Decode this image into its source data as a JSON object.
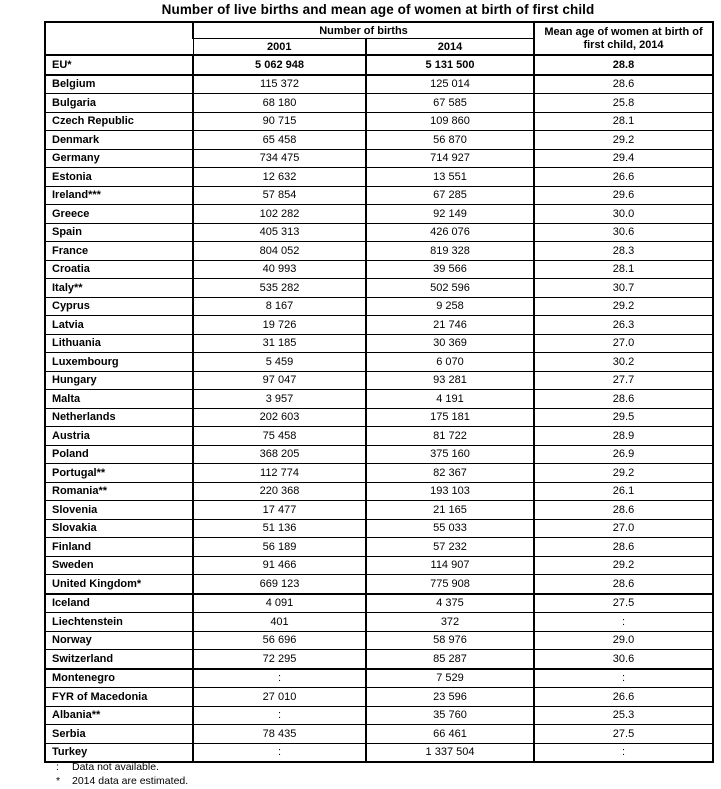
{
  "title": "Number of live births and mean age of women at birth of first child",
  "table": {
    "header": {
      "births_group": "Number of births",
      "col_2001": "2001",
      "col_2014": "2014",
      "mean_age": "Mean age of women at birth of first child, 2014"
    },
    "groups": [
      {
        "rows": [
          {
            "country": "EU*",
            "y2001": "5 062 948",
            "y2014": "5 131 500",
            "mean_age": "28.8",
            "bold": true
          }
        ]
      },
      {
        "rows": [
          {
            "country": "Belgium",
            "y2001": "115 372",
            "y2014": "125 014",
            "mean_age": "28.6"
          },
          {
            "country": "Bulgaria",
            "y2001": "68 180",
            "y2014": "67 585",
            "mean_age": "25.8"
          },
          {
            "country": "Czech Republic",
            "y2001": "90 715",
            "y2014": "109 860",
            "mean_age": "28.1"
          },
          {
            "country": "Denmark",
            "y2001": "65 458",
            "y2014": "56 870",
            "mean_age": "29.2"
          },
          {
            "country": "Germany",
            "y2001": "734 475",
            "y2014": "714 927",
            "mean_age": "29.4"
          },
          {
            "country": "Estonia",
            "y2001": "12 632",
            "y2014": "13 551",
            "mean_age": "26.6"
          },
          {
            "country": "Ireland***",
            "y2001": "57 854",
            "y2014": "67 285",
            "mean_age": "29.6"
          },
          {
            "country": "Greece",
            "y2001": "102 282",
            "y2014": "92 149",
            "mean_age": "30.0"
          },
          {
            "country": "Spain",
            "y2001": "405 313",
            "y2014": "426 076",
            "mean_age": "30.6"
          },
          {
            "country": "France",
            "y2001": "804 052",
            "y2014": "819 328",
            "mean_age": "28.3"
          },
          {
            "country": "Croatia",
            "y2001": "40 993",
            "y2014": "39 566",
            "mean_age": "28.1"
          },
          {
            "country": "Italy**",
            "y2001": "535 282",
            "y2014": "502 596",
            "mean_age": "30.7"
          },
          {
            "country": "Cyprus",
            "y2001": "8 167",
            "y2014": "9 258",
            "mean_age": "29.2"
          },
          {
            "country": "Latvia",
            "y2001": "19 726",
            "y2014": "21 746",
            "mean_age": "26.3"
          },
          {
            "country": "Lithuania",
            "y2001": "31 185",
            "y2014": "30 369",
            "mean_age": "27.0"
          },
          {
            "country": "Luxembourg",
            "y2001": "5 459",
            "y2014": "6 070",
            "mean_age": "30.2"
          },
          {
            "country": "Hungary",
            "y2001": "97 047",
            "y2014": "93 281",
            "mean_age": "27.7"
          },
          {
            "country": "Malta",
            "y2001": "3 957",
            "y2014": "4 191",
            "mean_age": "28.6"
          },
          {
            "country": "Netherlands",
            "y2001": "202 603",
            "y2014": "175 181",
            "mean_age": "29.5"
          },
          {
            "country": "Austria",
            "y2001": "75 458",
            "y2014": "81 722",
            "mean_age": "28.9"
          },
          {
            "country": "Poland",
            "y2001": "368 205",
            "y2014": "375 160",
            "mean_age": "26.9"
          },
          {
            "country": "Portugal**",
            "y2001": "112 774",
            "y2014": "82 367",
            "mean_age": "29.2"
          },
          {
            "country": "Romania**",
            "y2001": "220 368",
            "y2014": "193 103",
            "mean_age": "26.1"
          },
          {
            "country": "Slovenia",
            "y2001": "17 477",
            "y2014": "21 165",
            "mean_age": "28.6"
          },
          {
            "country": "Slovakia",
            "y2001": "51 136",
            "y2014": "55 033",
            "mean_age": "27.0"
          },
          {
            "country": "Finland",
            "y2001": "56 189",
            "y2014": "57 232",
            "mean_age": "28.6"
          },
          {
            "country": "Sweden",
            "y2001": "91 466",
            "y2014": "114 907",
            "mean_age": "29.2"
          },
          {
            "country": "United Kingdom*",
            "y2001": "669 123",
            "y2014": "775 908",
            "mean_age": "28.6"
          }
        ]
      },
      {
        "rows": [
          {
            "country": "Iceland",
            "y2001": "4 091",
            "y2014": "4 375",
            "mean_age": "27.5"
          },
          {
            "country": "Liechtenstein",
            "y2001": "401",
            "y2014": "372",
            "mean_age": ":"
          },
          {
            "country": "Norway",
            "y2001": "56 696",
            "y2014": "58 976",
            "mean_age": "29.0"
          },
          {
            "country": "Switzerland",
            "y2001": "72 295",
            "y2014": "85 287",
            "mean_age": "30.6"
          }
        ]
      },
      {
        "rows": [
          {
            "country": "Montenegro",
            "y2001": ":",
            "y2014": "7 529",
            "mean_age": ":"
          },
          {
            "country": "FYR of Macedonia",
            "y2001": "27 010",
            "y2014": "23 596",
            "mean_age": "26.6"
          },
          {
            "country": "Albania**",
            "y2001": ":",
            "y2014": "35 760",
            "mean_age": "25.3"
          },
          {
            "country": "Serbia",
            "y2001": "78 435",
            "y2014": "66 461",
            "mean_age": "27.5"
          },
          {
            "country": "Turkey",
            "y2001": ":",
            "y2014": "1 337 504",
            "mean_age": ":"
          }
        ]
      }
    ]
  },
  "footnotes": [
    {
      "symbol": ":",
      "text": "Data not available."
    },
    {
      "symbol": "*",
      "text": "2014 data are estimated."
    }
  ]
}
